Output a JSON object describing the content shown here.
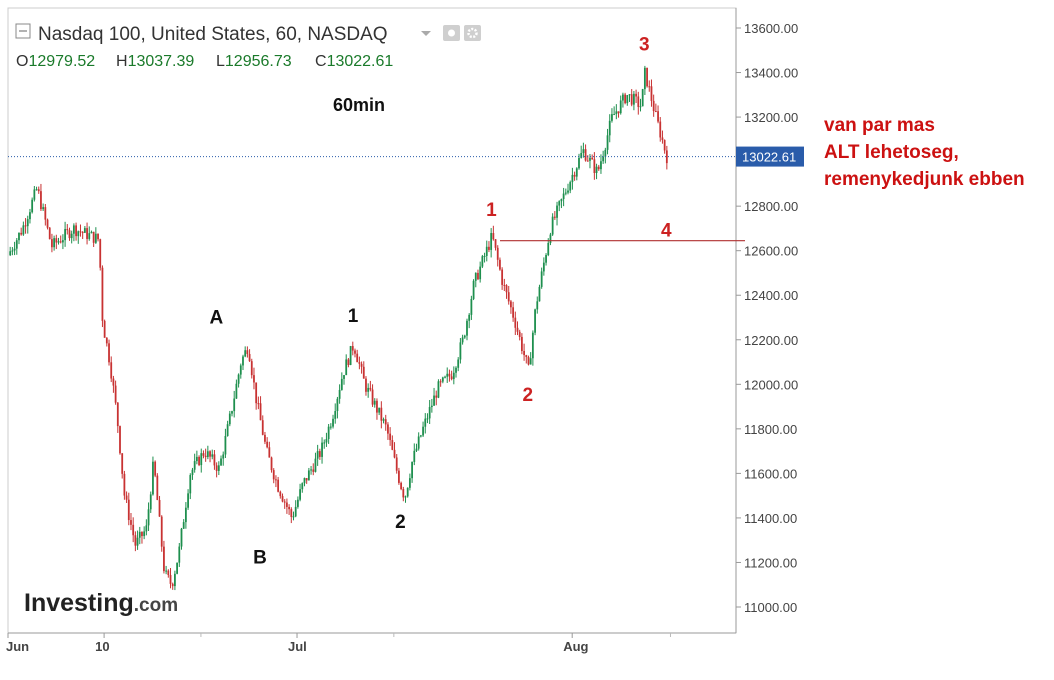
{
  "header": {
    "title": "Nasdaq 100, United States, 60, NASDAQ",
    "ohlc": [
      {
        "key": "O",
        "value": "12979.52"
      },
      {
        "key": "H",
        "value": "13037.39"
      },
      {
        "key": "L",
        "value": "12956.73"
      },
      {
        "key": "C",
        "value": "13022.61"
      }
    ],
    "icons": [
      "chevron-down-icon",
      "eye-icon",
      "gear-icon"
    ]
  },
  "timeframe_label": "60min",
  "logo": {
    "main": "Investing",
    "suffix": ".com"
  },
  "side_note": [
    "van par  mas",
    "ALT lehetoseg,",
    "remenykedjunk ebben"
  ],
  "colors": {
    "up": "#1e8f4e",
    "down": "#c83232",
    "annotation_red": "#cc2222",
    "price_line": "#2a5caa",
    "price_badge": "#2a5caa"
  },
  "chart_data": {
    "type": "candlestick",
    "title": "Nasdaq 100, United States, 60, NASDAQ",
    "timeframe": "60",
    "last_price": 13022.61,
    "price_badge": "13022.61",
    "ylim": [
      10950,
      13650
    ],
    "y_ticks": [
      "13600.00",
      "13400.00",
      "13200.00",
      "13000.00",
      "12800.00",
      "12600.00",
      "12400.00",
      "12200.00",
      "12000.00",
      "11800.00",
      "11600.00",
      "11400.00",
      "11200.00",
      "11000.00"
    ],
    "x_ticks": [
      "Jun",
      "10",
      "Jul",
      "Aug"
    ],
    "grid": false,
    "horizontal_line": {
      "value": 12645,
      "label": "4"
    },
    "wave_labels": [
      {
        "label": "A",
        "t": 0.285,
        "value": 12175,
        "color": "black"
      },
      {
        "label": "B",
        "t": 0.345,
        "value": 11330,
        "color": "black"
      },
      {
        "label": "1",
        "t": 0.475,
        "value": 12180,
        "color": "black"
      },
      {
        "label": "2",
        "t": 0.54,
        "value": 11490,
        "color": "black"
      },
      {
        "label": "1",
        "t": 0.665,
        "value": 12665,
        "color": "red"
      },
      {
        "label": "2",
        "t": 0.715,
        "value": 12060,
        "color": "red"
      },
      {
        "label": "3",
        "t": 0.875,
        "value": 13400,
        "color": "red"
      }
    ],
    "price_path": [
      [
        0.0,
        12580
      ],
      [
        0.02,
        12700
      ],
      [
        0.04,
        12880
      ],
      [
        0.06,
        12620
      ],
      [
        0.09,
        12700
      ],
      [
        0.125,
        12650
      ],
      [
        0.13,
        12280
      ],
      [
        0.14,
        12100
      ],
      [
        0.15,
        11850
      ],
      [
        0.16,
        11500
      ],
      [
        0.175,
        11280
      ],
      [
        0.19,
        11350
      ],
      [
        0.2,
        11650
      ],
      [
        0.215,
        11150
      ],
      [
        0.225,
        11100
      ],
      [
        0.235,
        11250
      ],
      [
        0.25,
        11600
      ],
      [
        0.27,
        11700
      ],
      [
        0.29,
        11620
      ],
      [
        0.305,
        11850
      ],
      [
        0.32,
        12100
      ],
      [
        0.33,
        12175
      ],
      [
        0.34,
        11950
      ],
      [
        0.355,
        11700
      ],
      [
        0.37,
        11550
      ],
      [
        0.39,
        11400
      ],
      [
        0.405,
        11550
      ],
      [
        0.43,
        11700
      ],
      [
        0.445,
        11850
      ],
      [
        0.46,
        12050
      ],
      [
        0.475,
        12180
      ],
      [
        0.49,
        12000
      ],
      [
        0.505,
        11900
      ],
      [
        0.52,
        11800
      ],
      [
        0.535,
        11600
      ],
      [
        0.545,
        11490
      ],
      [
        0.555,
        11650
      ],
      [
        0.57,
        11800
      ],
      [
        0.59,
        11980
      ],
      [
        0.61,
        12050
      ],
      [
        0.625,
        12200
      ],
      [
        0.64,
        12450
      ],
      [
        0.665,
        12665
      ],
      [
        0.68,
        12450
      ],
      [
        0.695,
        12300
      ],
      [
        0.715,
        12060
      ],
      [
        0.725,
        12350
      ],
      [
        0.745,
        12700
      ],
      [
        0.77,
        12900
      ],
      [
        0.79,
        13050
      ],
      [
        0.81,
        12950
      ],
      [
        0.83,
        13200
      ],
      [
        0.85,
        13300
      ],
      [
        0.87,
        13250
      ],
      [
        0.875,
        13400
      ],
      [
        0.89,
        13200
      ],
      [
        0.905,
        13022.61
      ]
    ]
  }
}
